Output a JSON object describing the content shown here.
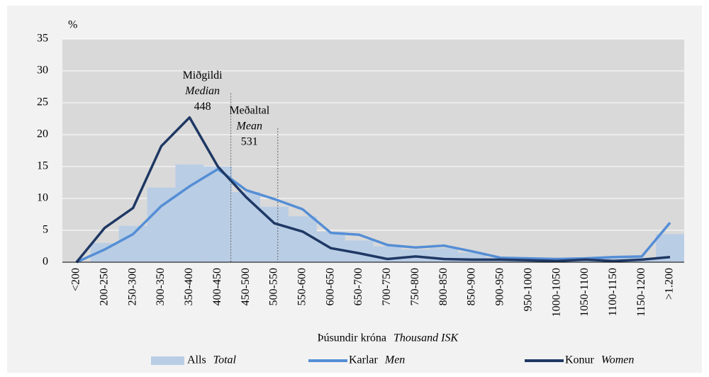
{
  "chart_data": {
    "type": "bar_line",
    "ylabel": "%",
    "xlabel": {
      "text": "Þúsundir króna",
      "text_en": "Thousand ISK"
    },
    "categories": [
      "<200",
      "200-250",
      "250-300",
      "300-350",
      "350-400",
      "400-450",
      "450-500",
      "500-550",
      "550-600",
      "600-650",
      "650-700",
      "700-750",
      "750-800",
      "800-850",
      "850-900",
      "900-950",
      "950-1000",
      "1000-1050",
      "1050-1100",
      "1100-1150",
      "1150-1200",
      ">1.200"
    ],
    "series": [
      {
        "name": "Alls",
        "name_en": "Total",
        "kind": "bar",
        "color": "#b9cde5",
        "values": [
          0,
          3,
          5.7,
          11.7,
          15.3,
          15,
          11,
          8.7,
          7.2,
          4.8,
          3.4,
          2.5,
          2,
          2.2,
          1.5,
          0.7,
          0.6,
          0.5,
          0.5,
          0.6,
          0.7,
          4.4
        ]
      },
      {
        "name": "Karlar",
        "name_en": "Men",
        "kind": "line",
        "color": "#558ed5",
        "values": [
          0,
          2,
          4.4,
          8.8,
          11.9,
          14.6,
          11.3,
          9.9,
          8.3,
          4.6,
          4.3,
          2.7,
          2.3,
          2.6,
          1.7,
          0.7,
          0.6,
          0.5,
          0.6,
          0.8,
          0.9,
          6.2
        ]
      },
      {
        "name": "Konur",
        "name_en": "Women",
        "kind": "line",
        "color": "#1f3864",
        "values": [
          0,
          5.4,
          8.5,
          18.2,
          22.7,
          15,
          10.2,
          6.1,
          4.8,
          2.2,
          1.4,
          0.5,
          0.9,
          0.5,
          0.4,
          0.4,
          0.3,
          0.2,
          0.4,
          0.2,
          0.4,
          0.8
        ]
      }
    ],
    "annotations": [
      {
        "text": "Miðgildi",
        "text_en": "Median",
        "value": 448,
        "y": 26.5
      },
      {
        "text": "Meðaltal",
        "text_en": "Mean",
        "value": 531,
        "y": 21
      }
    ],
    "ylim": [
      0,
      35
    ],
    "yticks": [
      0,
      5,
      10,
      15,
      20,
      25,
      30,
      35
    ],
    "grid": true
  }
}
